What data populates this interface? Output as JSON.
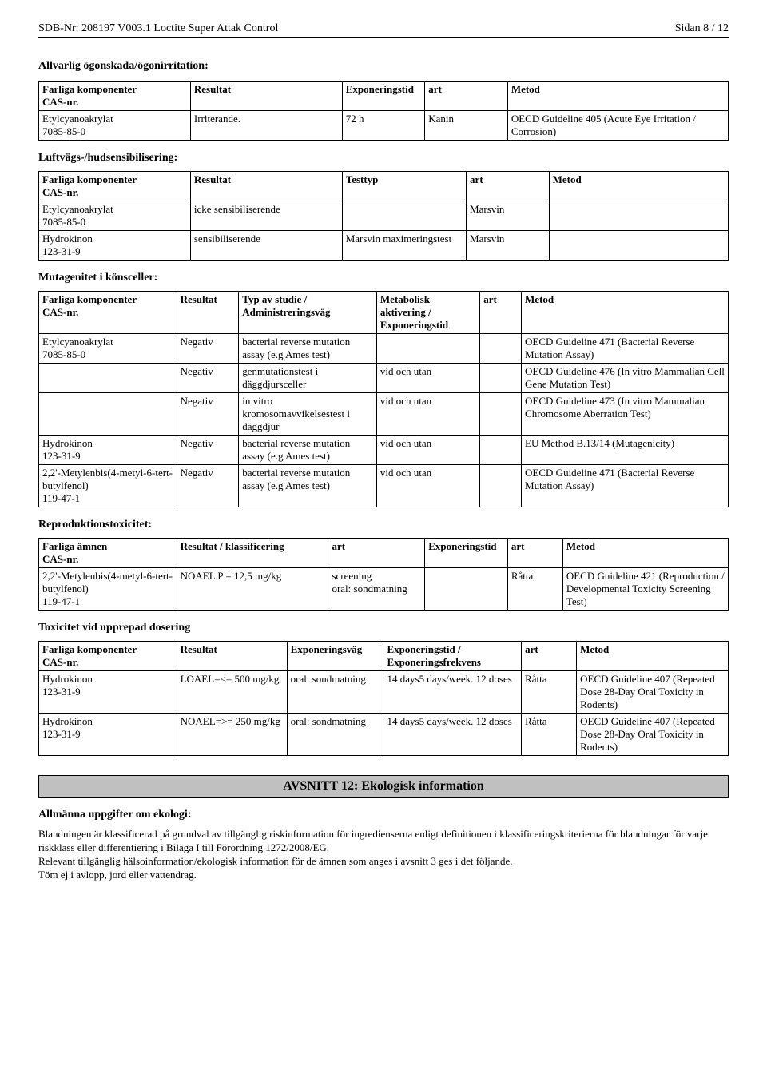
{
  "header": {
    "left": "SDB-Nr: 208197   V003.1   Loctite Super Attak Control",
    "right": "Sidan 8 / 12"
  },
  "eye": {
    "title": "Allvarlig ögonskada/ögonirritation:",
    "cols": [
      "Farliga komponenter\nCAS-nr.",
      "Resultat",
      "Exponeringstid",
      "art",
      "Metod"
    ],
    "rows": [
      [
        "Etylcyanoakrylat\n7085-85-0",
        "Irriterande.",
        "72 h",
        "Kanin",
        "OECD Guideline 405 (Acute Eye Irritation / Corrosion)"
      ]
    ]
  },
  "resp": {
    "title": "Luftvägs-/hudsensibilisering:",
    "cols": [
      "Farliga komponenter\nCAS-nr.",
      "Resultat",
      "Testtyp",
      "art",
      "Metod"
    ],
    "rows": [
      [
        "Etylcyanoakrylat\n7085-85-0",
        "icke sensibiliserende",
        "",
        "Marsvin",
        ""
      ],
      [
        "Hydrokinon\n123-31-9",
        "sensibiliserende",
        "Marsvin maximeringstest",
        "Marsvin",
        ""
      ]
    ]
  },
  "muta": {
    "title": "Mutagenitet i könsceller:",
    "cols": [
      "Farliga komponenter\nCAS-nr.",
      "Resultat",
      "Typ av studie / Administreringsväg",
      "Metabolisk aktivering / Exponeringstid",
      "art",
      "Metod"
    ],
    "rows": [
      [
        "Etylcyanoakrylat\n7085-85-0",
        "Negativ",
        "bacterial reverse mutation assay (e.g Ames test)",
        "",
        "",
        "OECD Guideline 471 (Bacterial Reverse Mutation Assay)"
      ],
      [
        "",
        "Negativ",
        "genmutationstest i däggdjursceller",
        "vid och utan",
        "",
        "OECD Guideline 476 (In vitro Mammalian Cell Gene Mutation Test)"
      ],
      [
        "",
        "Negativ",
        "in vitro kromosomavvikelsestest i däggdjur",
        "vid och utan",
        "",
        "OECD Guideline 473 (In vitro Mammalian Chromosome Aberration Test)"
      ],
      [
        "Hydrokinon\n123-31-9",
        "Negativ",
        "bacterial reverse mutation assay (e.g Ames test)",
        "vid och utan",
        "",
        "EU Method B.13/14 (Mutagenicity)"
      ],
      [
        "2,2'-Metylenbis(4-metyl-6-tert-butylfenol)\n119-47-1",
        "Negativ",
        "bacterial reverse mutation assay (e.g Ames test)",
        "vid och utan",
        "",
        "OECD Guideline 471 (Bacterial Reverse Mutation Assay)"
      ]
    ]
  },
  "repro": {
    "title": "Reproduktionstoxicitet:",
    "cols": [
      "Farliga ämnen\nCAS-nr.",
      "Resultat / klassificering",
      "art",
      "Exponeringstid",
      "art",
      "Metod"
    ],
    "rows": [
      [
        "2,2'-Metylenbis(4-metyl-6-tert-butylfenol)\n119-47-1",
        "NOAEL P = 12,5 mg/kg",
        "screening\noral: sondmatning",
        "",
        "Råtta",
        "OECD Guideline 421 (Reproduction / Developmental Toxicity Screening Test)"
      ]
    ]
  },
  "repdose": {
    "title": "Toxicitet vid upprepad dosering",
    "cols": [
      "Farliga komponenter\nCAS-nr.",
      "Resultat",
      "Exponeringsväg",
      "Exponeringstid / Exponeringsfrekvens",
      "art",
      "Metod"
    ],
    "rows": [
      [
        "Hydrokinon\n123-31-9",
        "LOAEL=<= 500 mg/kg",
        "oral: sondmatning",
        "14 days5 days/week. 12 doses",
        "Råtta",
        "OECD Guideline 407 (Repeated Dose 28-Day Oral Toxicity in Rodents)"
      ],
      [
        "Hydrokinon\n123-31-9",
        "NOAEL=>= 250 mg/kg",
        "oral: sondmatning",
        "14 days5 days/week. 12 doses",
        "Råtta",
        "OECD Guideline 407 (Repeated Dose 28-Day Oral Toxicity in Rodents)"
      ]
    ]
  },
  "sect12": {
    "banner": "AVSNITT 12: Ekologisk information",
    "heading": "Allmänna uppgifter om ekologi:",
    "para1": "Blandningen är klassificerad på grundval av tillgänglig riskinformation för ingredienserna enligt definitionen i klassificeringskriterierna för blandningar för varje riskklass eller differentiering i Bilaga I till Förordning 1272/2008/EG.",
    "para2": "Relevant tillgänglig hälsoinformation/ekologisk information för de ämnen som anges i avsnitt 3 ges i det följande.",
    "para3": "Töm ej i avlopp, jord eller vattendrag."
  },
  "style": {
    "text_color": "#000000",
    "background_color": "#ffffff",
    "banner_bg": "#c0c0c0",
    "border_color": "#000000",
    "body_fontsize": 13,
    "header_fontsize": 14,
    "title_fontsize": 14,
    "banner_fontsize": 16,
    "font_family": "Times New Roman",
    "col_widths": {
      "eye": [
        "22%",
        "22%",
        "12%",
        "12%",
        "32%"
      ],
      "resp": [
        "22%",
        "22%",
        "18%",
        "12%",
        "26%"
      ],
      "muta": [
        "20%",
        "9%",
        "20%",
        "15%",
        "6%",
        "30%"
      ],
      "repro": [
        "20%",
        "22%",
        "14%",
        "12%",
        "8%",
        "24%"
      ],
      "repdose": [
        "20%",
        "16%",
        "14%",
        "20%",
        "8%",
        "22%"
      ]
    }
  }
}
